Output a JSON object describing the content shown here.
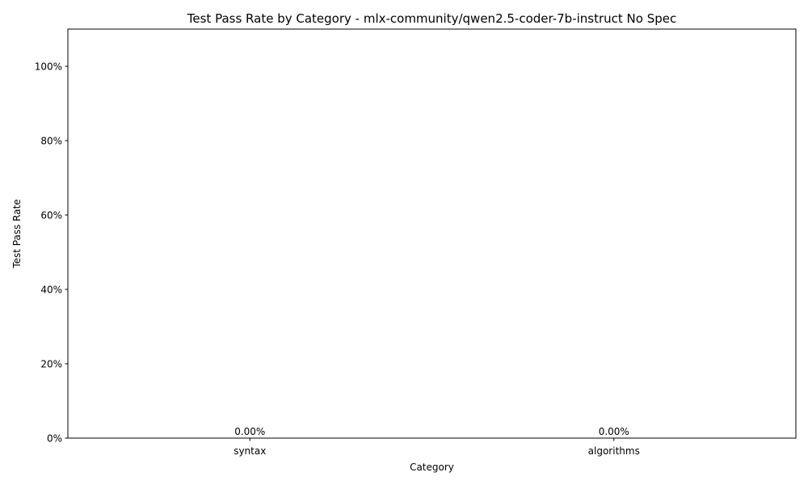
{
  "chart_data": {
    "type": "bar",
    "title": "Test Pass Rate by Category - mlx-community/qwen2.5-coder-7b-instruct No Spec",
    "xlabel": "Category",
    "ylabel": "Test Pass Rate",
    "categories": [
      "syntax",
      "algorithms"
    ],
    "values": [
      0.0,
      0.0
    ],
    "data_labels": [
      "0.00%",
      "0.00%"
    ],
    "ylim": [
      0,
      1.1
    ],
    "yticks": [
      0,
      0.2,
      0.4,
      0.6,
      0.8,
      1.0
    ],
    "ytick_labels": [
      "0%",
      "20%",
      "40%",
      "60%",
      "80%",
      "100%"
    ],
    "grid": false,
    "legend": "none",
    "colors": {
      "bar": "#1f77b4",
      "axis": "#000000",
      "background": "#ffffff"
    }
  }
}
